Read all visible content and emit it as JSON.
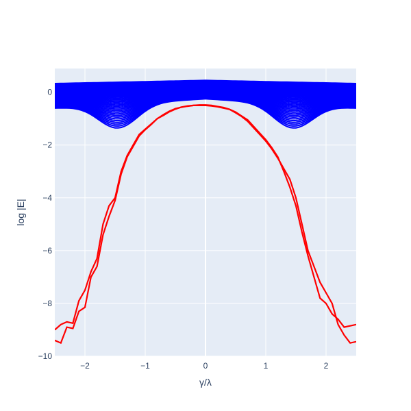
{
  "chart_data": {
    "type": "line",
    "xlabel": "γ/λ",
    "ylabel": "log |E|",
    "xlim": [
      -2.5,
      2.5
    ],
    "ylim": [
      -10,
      0.9
    ],
    "x_ticks": [
      -2,
      -1,
      0,
      1,
      2
    ],
    "x_tick_labels": [
      "−2",
      "−1",
      "0",
      "1",
      "2"
    ],
    "y_ticks": [
      -10,
      -8,
      -6,
      -4,
      -2,
      0
    ],
    "y_tick_labels": [
      "−10",
      "−8",
      "−6",
      "−4",
      "−2",
      "0"
    ],
    "grid": true,
    "legend": "none",
    "colors": {
      "plot_bg": "#e5ecf6",
      "grid": "#ffffff",
      "blue": "#0000ff",
      "red": "#ff0000",
      "text": "#2a3f5f"
    },
    "series": [
      {
        "color": "#ff0000",
        "x": [
          -2.5,
          -2.4,
          -2.3,
          -2.2,
          -2.1,
          -2.0,
          -1.9,
          -1.8,
          -1.7,
          -1.6,
          -1.5,
          -1.4,
          -1.3,
          -1.2,
          -1.1,
          -1.0,
          -0.9,
          -0.8,
          -0.7,
          -0.6,
          -0.5,
          -0.4,
          -0.3,
          -0.2,
          -0.1,
          0.0,
          0.1,
          0.2,
          0.3,
          0.4,
          0.5,
          0.6,
          0.7,
          0.8,
          0.9,
          1.0,
          1.1,
          1.2,
          1.3,
          1.4,
          1.5,
          1.6,
          1.7,
          1.8,
          1.9,
          2.0,
          2.1,
          2.2,
          2.3,
          2.4,
          2.5
        ],
        "y": [
          -9.0,
          -8.8,
          -8.7,
          -8.75,
          -7.9,
          -7.5,
          -6.8,
          -6.3,
          -5.0,
          -4.3,
          -4.0,
          -3.0,
          -2.4,
          -2.0,
          -1.6,
          -1.4,
          -1.2,
          -1.0,
          -0.85,
          -0.72,
          -0.62,
          -0.57,
          -0.53,
          -0.5,
          -0.5,
          -0.5,
          -0.52,
          -0.55,
          -0.6,
          -0.65,
          -0.75,
          -0.9,
          -1.05,
          -1.3,
          -1.55,
          -1.8,
          -2.1,
          -2.45,
          -3.0,
          -3.6,
          -4.3,
          -5.3,
          -6.2,
          -7.0,
          -7.8,
          -8.0,
          -8.4,
          -8.6,
          -8.9,
          -8.85,
          -8.8
        ]
      },
      {
        "color": "#ff0000",
        "x": [
          -2.5,
          -2.4,
          -2.3,
          -2.2,
          -2.1,
          -2.0,
          -1.9,
          -1.8,
          -1.7,
          -1.6,
          -1.5,
          -1.4,
          -1.3,
          -1.2,
          -1.1,
          -1.0,
          -0.9,
          -0.8,
          -0.7,
          -0.6,
          -0.5,
          -0.4,
          -0.3,
          -0.2,
          -0.1,
          0.0,
          0.1,
          0.2,
          0.3,
          0.4,
          0.5,
          0.6,
          0.7,
          0.8,
          0.9,
          1.0,
          1.1,
          1.2,
          1.3,
          1.4,
          1.5,
          1.6,
          1.7,
          1.8,
          1.9,
          2.0,
          2.1,
          2.2,
          2.3,
          2.4,
          2.5
        ],
        "y": [
          -9.4,
          -9.5,
          -8.9,
          -8.95,
          -8.3,
          -8.15,
          -7.0,
          -6.6,
          -5.4,
          -4.7,
          -4.1,
          -3.1,
          -2.45,
          -2.05,
          -1.65,
          -1.42,
          -1.22,
          -1.0,
          -0.88,
          -0.74,
          -0.64,
          -0.56,
          -0.52,
          -0.5,
          -0.48,
          -0.48,
          -0.5,
          -0.54,
          -0.58,
          -0.65,
          -0.78,
          -0.92,
          -1.1,
          -1.35,
          -1.6,
          -1.85,
          -2.15,
          -2.5,
          -2.9,
          -3.3,
          -4.0,
          -5.0,
          -6.0,
          -6.6,
          -7.2,
          -7.6,
          -8.0,
          -8.8,
          -9.2,
          -9.5,
          -9.45
        ]
      }
    ]
  }
}
